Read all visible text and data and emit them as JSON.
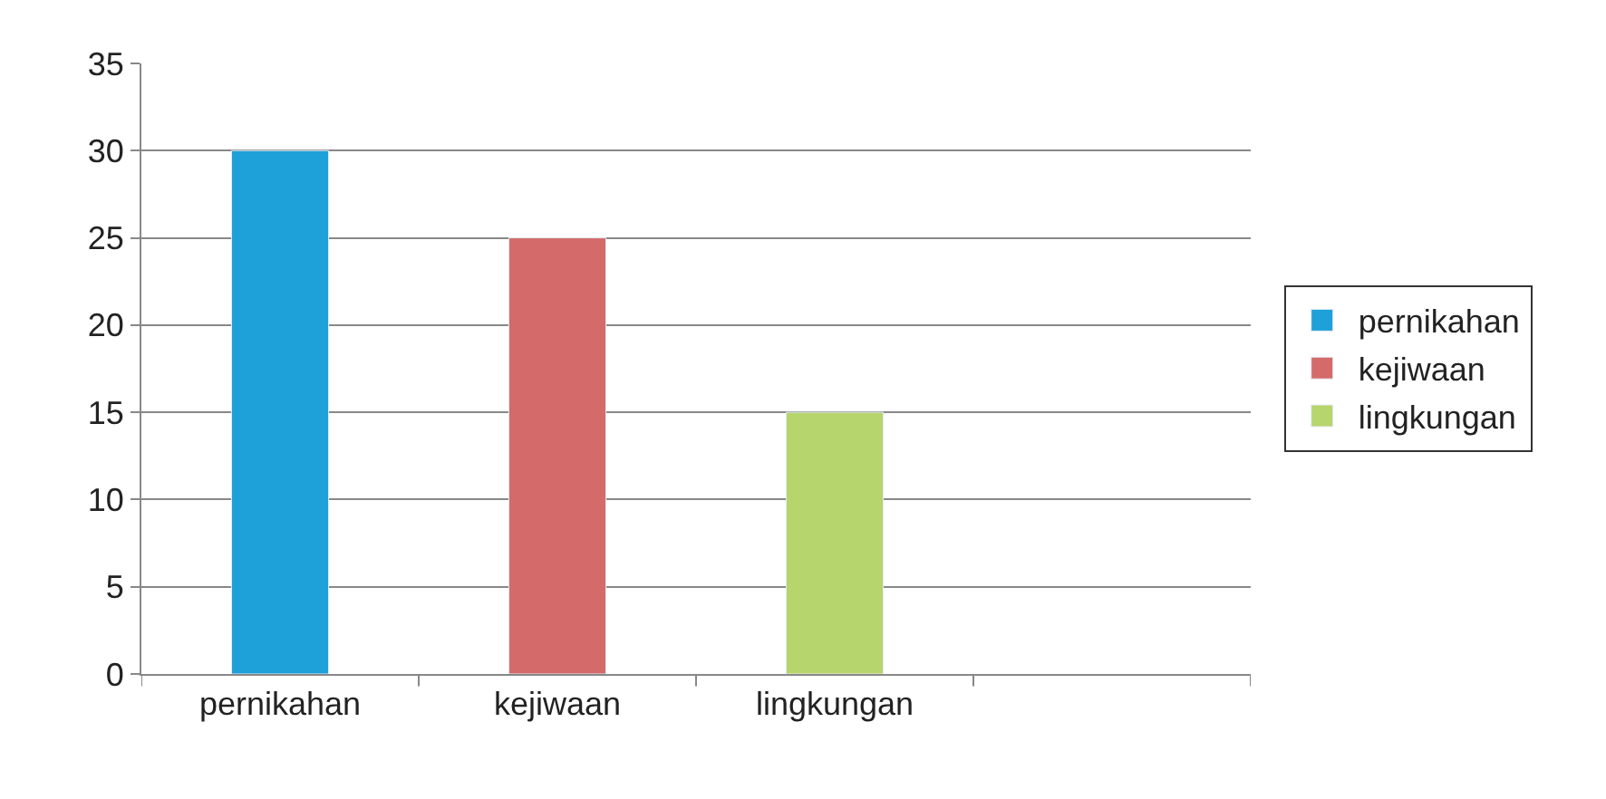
{
  "chart_data": {
    "type": "bar",
    "categories": [
      "pernikahan",
      "kejiwaan",
      "lingkungan",
      null
    ],
    "series": [
      {
        "name": "pernikahan",
        "color": "#1ea0d8",
        "values": [
          30,
          null,
          null,
          null
        ]
      },
      {
        "name": "kejiwaan",
        "color": "#d46a6a",
        "values": [
          null,
          25,
          null,
          null
        ]
      },
      {
        "name": "lingkungan",
        "color": "#b6d56c",
        "values": [
          null,
          null,
          15,
          null
        ]
      }
    ],
    "ylim": [
      0,
      35
    ],
    "yticks": [
      0,
      5,
      10,
      15,
      20,
      25,
      30,
      35
    ],
    "grid": "y",
    "legend": "right"
  }
}
